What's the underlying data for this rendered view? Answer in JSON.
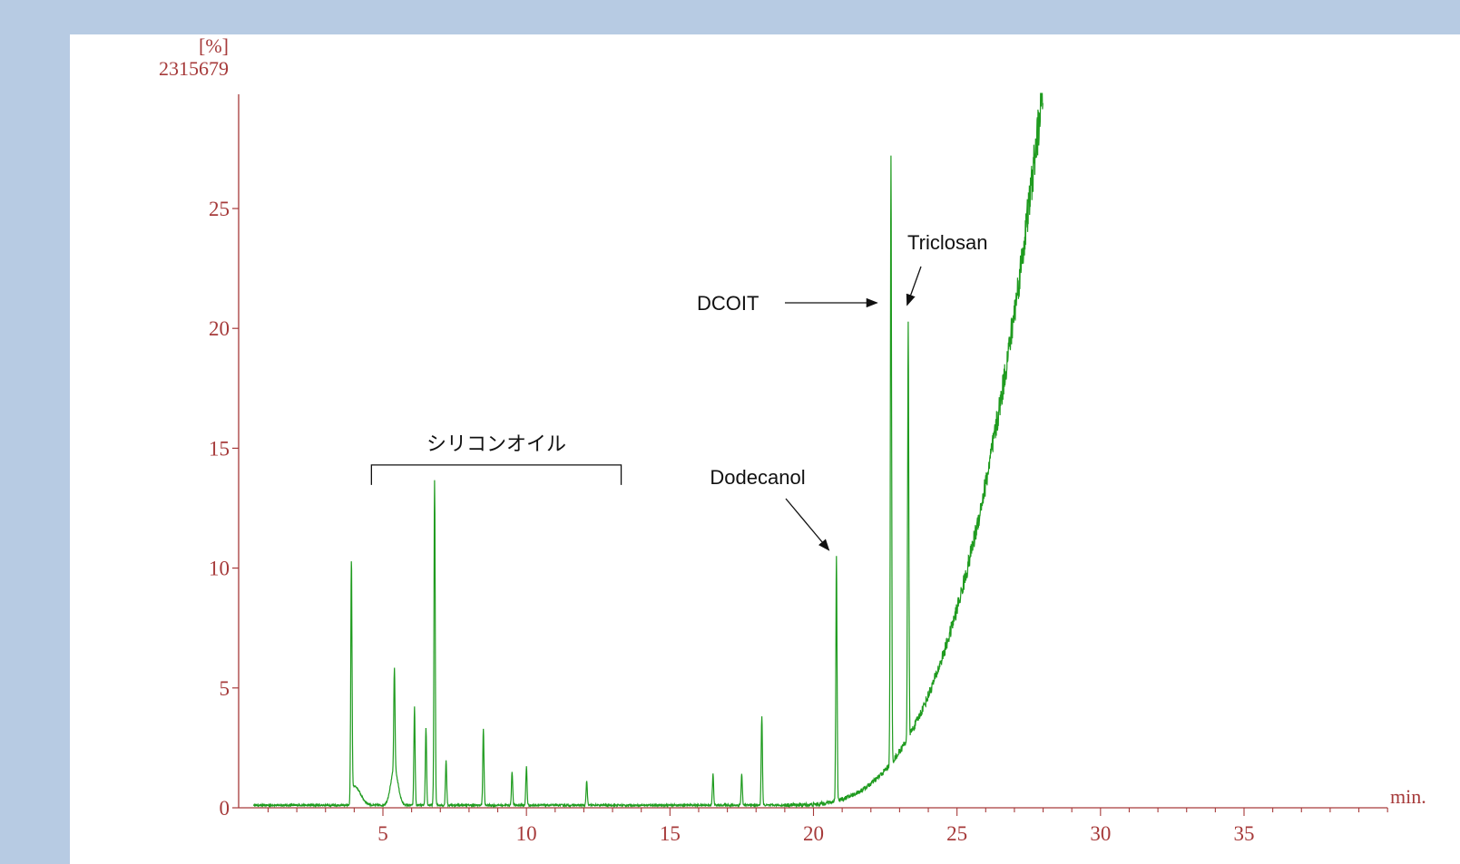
{
  "chart_data": {
    "type": "line",
    "y_unit": "[%]",
    "y_max_label": "2315679",
    "x_unit": "min.",
    "xlim": [
      0,
      40
    ],
    "ylim": [
      0,
      29.8
    ],
    "x_ticks": [
      5,
      10,
      15,
      20,
      25,
      30,
      35
    ],
    "y_ticks": [
      0,
      5,
      10,
      15,
      20,
      25
    ],
    "grid": false,
    "colors": {
      "trace": "#1f9b1f",
      "axis": "#a63a3a",
      "annotation": "#111111",
      "frame": "#b7cbe3"
    },
    "peaks": [
      {
        "x": 3.9,
        "y": 10.3
      },
      {
        "x": 5.4,
        "y": 4.3
      },
      {
        "x": 6.1,
        "y": 4.2
      },
      {
        "x": 6.5,
        "y": 3.3
      },
      {
        "x": 6.8,
        "y": 13.7
      },
      {
        "x": 7.2,
        "y": 2.0
      },
      {
        "x": 8.5,
        "y": 3.3
      },
      {
        "x": 9.5,
        "y": 1.5
      },
      {
        "x": 10.0,
        "y": 1.7
      },
      {
        "x": 12.1,
        "y": 1.1
      },
      {
        "x": 16.5,
        "y": 1.4
      },
      {
        "x": 17.5,
        "y": 1.4
      },
      {
        "x": 18.2,
        "y": 3.8
      },
      {
        "x": 20.8,
        "y": 10.5
      },
      {
        "x": 22.7,
        "y": 27.1
      },
      {
        "x": 23.3,
        "y": 20.1
      }
    ],
    "baseline_rise": {
      "start_x": 19.0,
      "end_x": 28.0,
      "end_y": 29.8
    },
    "annotations": [
      {
        "text": "シリコンオイル",
        "type": "bracket",
        "x_range": [
          4.6,
          13.3
        ],
        "y": 14.3
      },
      {
        "text": "Dodecanol",
        "type": "arrow",
        "target": {
          "x": 20.6,
          "y": 10.6
        }
      },
      {
        "text": "DCOIT",
        "type": "arrow",
        "target": {
          "x": 22.4,
          "y": 21.0
        }
      },
      {
        "text": "Triclosan",
        "type": "arrow",
        "target": {
          "x": 23.2,
          "y": 20.9
        }
      }
    ]
  }
}
